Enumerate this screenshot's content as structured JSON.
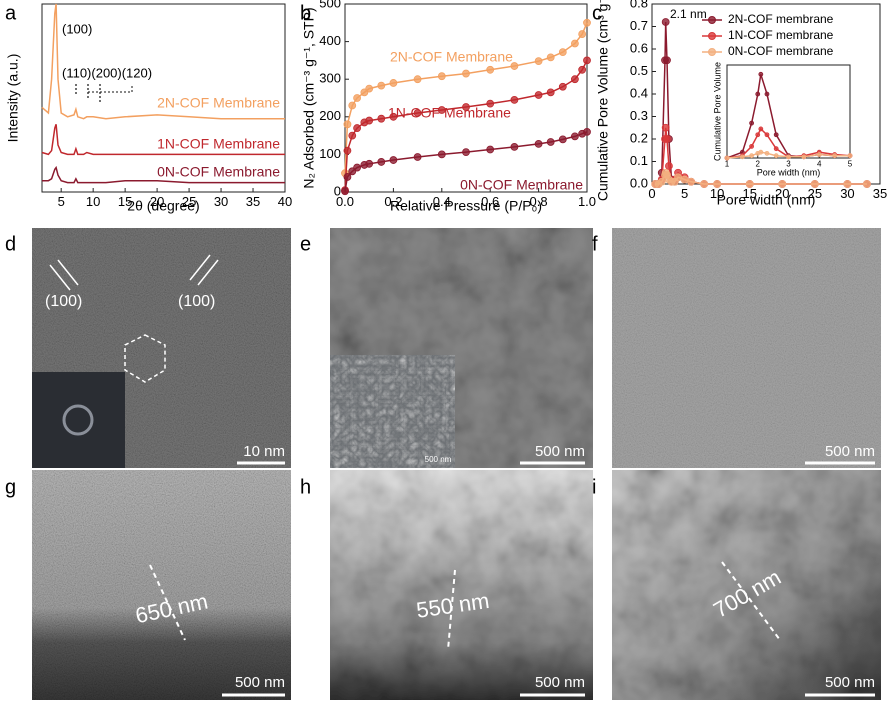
{
  "chart_data": [
    {
      "type": "line",
      "panel": "a",
      "xlabel": "2θ (degree)",
      "ylabel": "Intensity (a.u.)",
      "x": [
        2,
        3,
        3.5,
        4,
        4.2,
        4.5,
        5,
        6,
        7,
        7.3,
        7.6,
        8.5,
        9,
        10,
        12,
        15,
        20,
        25,
        30,
        35,
        40
      ],
      "xlim": [
        2,
        40
      ],
      "xticks": [
        5,
        10,
        15,
        20,
        25,
        30,
        35,
        40
      ],
      "ylim": [
        0,
        100
      ],
      "annotations": [
        "(100)",
        "(110)(200)(120)"
      ],
      "series": [
        {
          "name": "2N-COF Membrane",
          "color": "#f3a060",
          "values": [
            45,
            42,
            60,
            95,
            100,
            60,
            42,
            40,
            41,
            44,
            40,
            39,
            40,
            40,
            39,
            40,
            41,
            40,
            39,
            39,
            39
          ]
        },
        {
          "name": "1N-COF Membrane",
          "color": "#c0282d",
          "values": [
            21,
            20,
            22,
            34,
            36,
            25,
            21,
            20,
            20,
            23,
            20,
            20,
            21,
            20,
            20,
            20,
            20,
            20,
            20,
            20,
            20
          ]
        },
        {
          "name": "0N-COF Membrane",
          "color": "#8b1a2e",
          "values": [
            6,
            6,
            7,
            12,
            13,
            9,
            6,
            5,
            5,
            7,
            5,
            5,
            5,
            5,
            5,
            6,
            6,
            5,
            5,
            5,
            5
          ]
        }
      ]
    },
    {
      "type": "line",
      "panel": "b",
      "xlabel": "Relative Pressure (P/P₀)",
      "ylabel": "N₂ Adsorbed (cm⁻³ g⁻¹, STP)",
      "x": [
        0,
        0.01,
        0.03,
        0.05,
        0.08,
        0.1,
        0.15,
        0.2,
        0.3,
        0.4,
        0.5,
        0.6,
        0.7,
        0.8,
        0.85,
        0.9,
        0.95,
        0.98,
        1.0
      ],
      "xlim": [
        0,
        1
      ],
      "ylim": [
        0,
        500
      ],
      "xticks": [
        {
          "value": 0,
          "label": "0.0"
        },
        {
          "value": 0.2,
          "label": "0.2"
        },
        {
          "value": 0.4,
          "label": "0.4"
        },
        {
          "value": 0.6,
          "label": "0.6"
        },
        {
          "value": 0.8,
          "label": "0.8"
        },
        {
          "value": 1,
          "label": "1.0"
        }
      ],
      "yticks": [
        0,
        100,
        200,
        300,
        400,
        500
      ],
      "series": [
        {
          "name": "2N-COF Membrane",
          "color": "#f3a060",
          "values": [
            50,
            180,
            230,
            250,
            265,
            275,
            283,
            290,
            300,
            308,
            315,
            325,
            335,
            348,
            358,
            372,
            395,
            420,
            450
          ]
        },
        {
          "name": "1N-COF Membrane",
          "color": "#c0282d",
          "values": [
            5,
            110,
            150,
            170,
            185,
            190,
            195,
            200,
            210,
            218,
            226,
            235,
            245,
            258,
            265,
            280,
            300,
            325,
            350
          ]
        },
        {
          "name": "0N-COF Membrane",
          "color": "#8b1a2e",
          "values": [
            2,
            40,
            55,
            65,
            72,
            75,
            80,
            85,
            93,
            100,
            106,
            113,
            120,
            128,
            133,
            140,
            148,
            155,
            160
          ]
        }
      ]
    },
    {
      "type": "line",
      "panel": "c",
      "xlabel": "Pore width (nm)",
      "ylabel": "Cumulative Pore Volume (cm³ g⁻¹)",
      "x": [
        0.5,
        1,
        1.5,
        2,
        2.1,
        2.3,
        2.6,
        3,
        3.5,
        4,
        5,
        6,
        8,
        10,
        15,
        20,
        25,
        30,
        33
      ],
      "xlim": [
        0,
        35
      ],
      "xticks": [
        0,
        5,
        10,
        15,
        20,
        25,
        30,
        35
      ],
      "ylim": [
        0,
        0.8
      ],
      "yticks": [
        {
          "value": 0,
          "label": "0.0"
        },
        {
          "value": 0.1,
          "label": "0.1"
        },
        {
          "value": 0.2,
          "label": "0.2"
        },
        {
          "value": 0.3,
          "label": "0.3"
        },
        {
          "value": 0.4,
          "label": "0.4"
        },
        {
          "value": 0.5,
          "label": "0.5"
        },
        {
          "value": 0.6,
          "label": "0.6"
        },
        {
          "value": 0.7,
          "label": "0.7"
        },
        {
          "value": 0.8,
          "label": "0.8"
        }
      ],
      "annotations": [
        "2.1 nm"
      ],
      "legend": "upper right",
      "series": [
        {
          "name": "2N-COF membrane",
          "color": "#8b1a2e",
          "values": [
            0,
            0,
            0.05,
            0.55,
            0.72,
            0.55,
            0.2,
            0.02,
            0.01,
            0.03,
            0.02,
            0.01,
            0,
            0,
            0,
            0,
            0,
            0,
            0
          ]
        },
        {
          "name": "1N-COF membrane",
          "color": "#d9383a",
          "values": [
            0,
            0,
            0.02,
            0.2,
            0.25,
            0.2,
            0.08,
            0.01,
            0.02,
            0.05,
            0.03,
            0.01,
            0,
            0,
            0,
            0,
            0,
            0,
            0
          ]
        },
        {
          "name": "0N-COF membrane",
          "color": "#f3b080",
          "values": [
            0,
            0,
            0.01,
            0.04,
            0.05,
            0.04,
            0.02,
            0.01,
            0.01,
            0.03,
            0.02,
            0.01,
            0,
            0,
            0,
            0,
            0,
            0,
            0
          ]
        }
      ]
    },
    {
      "type": "line",
      "xlabel": "Pore width (nm)",
      "ylabel": "Cumulative Pore Volume",
      "x": [
        1,
        1.5,
        1.8,
        2,
        2.1,
        2.3,
        2.6,
        3,
        3.5,
        4,
        4.5,
        5
      ],
      "xlim": [
        1,
        5
      ],
      "xticks": [
        1,
        2,
        3,
        4,
        5
      ],
      "ylim": [
        0,
        0.8
      ],
      "series": [
        {
          "color": "#8b1a2e",
          "values": [
            0,
            0.05,
            0.3,
            0.55,
            0.72,
            0.55,
            0.2,
            0.02,
            0.01,
            0.03,
            0.02,
            0.02
          ]
        },
        {
          "color": "#d9383a",
          "values": [
            0,
            0.02,
            0.1,
            0.2,
            0.25,
            0.2,
            0.08,
            0.01,
            0.02,
            0.05,
            0.03,
            0.02
          ]
        },
        {
          "color": "#f3b080",
          "values": [
            0,
            0.01,
            0.02,
            0.04,
            0.05,
            0.04,
            0.02,
            0.01,
            0.01,
            0.03,
            0.02,
            0.02
          ]
        }
      ]
    }
  ],
  "panels": [
    {
      "letter": "d",
      "texts": [
        "(100)",
        "(100)",
        "10 nm"
      ]
    },
    {
      "letter": "e",
      "texts": [
        "500 nm",
        "500 nm"
      ]
    },
    {
      "letter": "f",
      "texts": [
        "500 nm"
      ]
    },
    {
      "letter": "g",
      "texts": [
        "650 nm",
        "500 nm"
      ]
    },
    {
      "letter": "h",
      "texts": [
        "550 nm",
        "500 nm"
      ]
    },
    {
      "letter": "i",
      "texts": [
        "700 nm",
        "500 nm"
      ]
    }
  ]
}
